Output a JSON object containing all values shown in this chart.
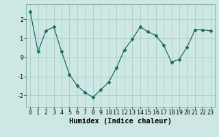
{
  "x": [
    0,
    1,
    2,
    3,
    4,
    5,
    6,
    7,
    8,
    9,
    10,
    11,
    12,
    13,
    14,
    15,
    16,
    17,
    18,
    19,
    20,
    21,
    22,
    23
  ],
  "y": [
    2.4,
    0.3,
    1.4,
    1.6,
    0.3,
    -0.9,
    -1.5,
    -1.85,
    -2.1,
    -1.7,
    -1.3,
    -0.55,
    0.4,
    0.95,
    1.6,
    1.35,
    1.15,
    0.65,
    -0.25,
    -0.1,
    0.55,
    1.45,
    1.45,
    1.4
  ],
  "xlabel": "Humidex (Indice chaleur)",
  "xlim": [
    -0.5,
    23.5
  ],
  "ylim": [
    -2.6,
    2.8
  ],
  "yticks": [
    -2,
    -1,
    0,
    1,
    2
  ],
  "xticks": [
    0,
    1,
    2,
    3,
    4,
    5,
    6,
    7,
    8,
    9,
    10,
    11,
    12,
    13,
    14,
    15,
    16,
    17,
    18,
    19,
    20,
    21,
    22,
    23
  ],
  "line_color": "#1a6b5a",
  "marker": "D",
  "marker_size": 2.5,
  "bg_color": "#cde8e4",
  "grid_color": "#aaccc8",
  "tick_fontsize": 6,
  "xlabel_fontsize": 7.5
}
